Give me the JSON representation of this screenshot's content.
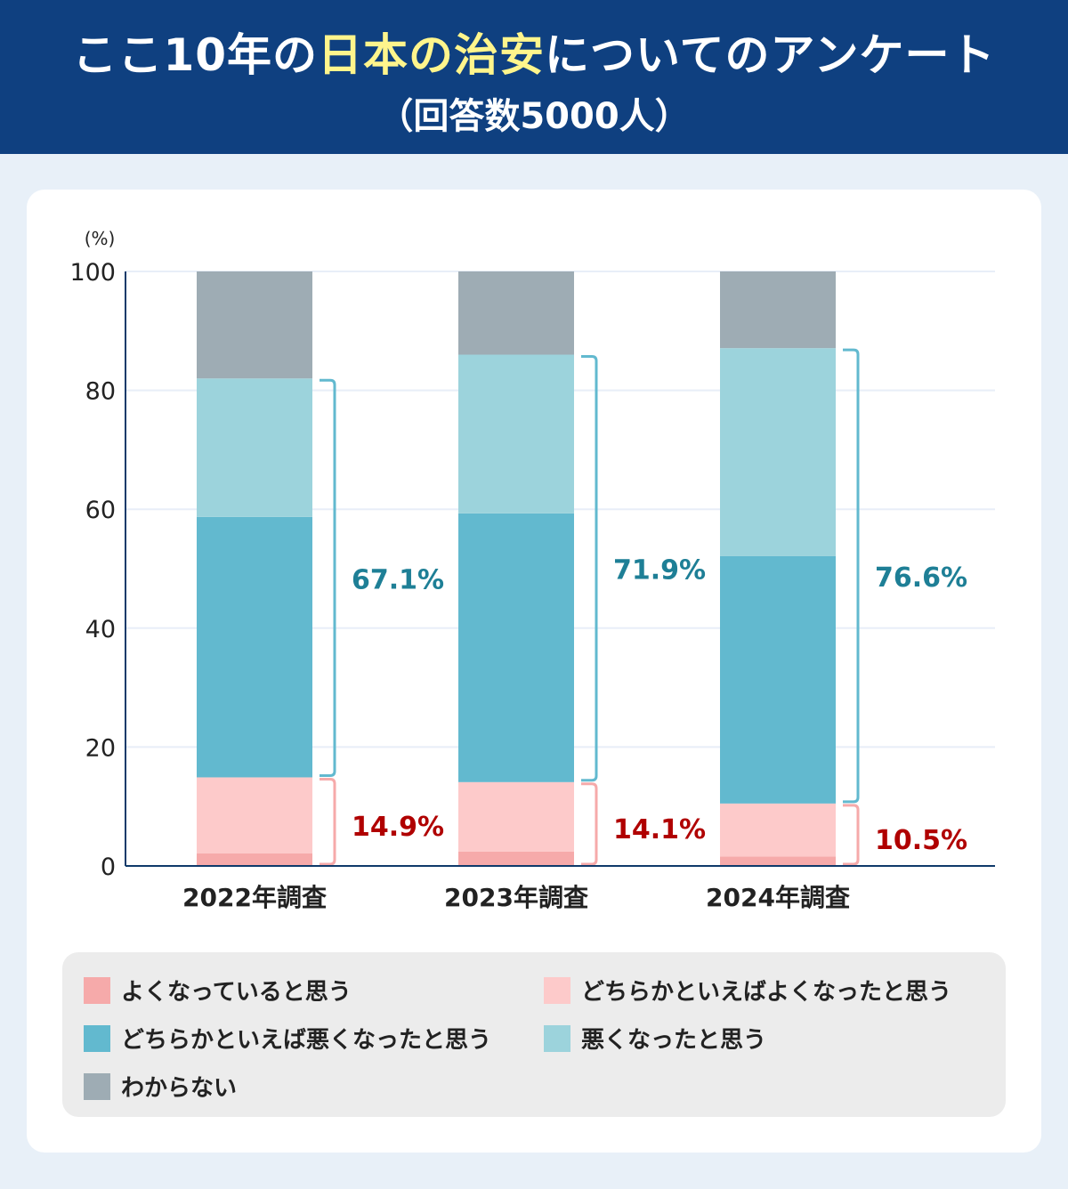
{
  "header": {
    "title_pre": "ここ10年の",
    "title_highlight": "日本の治安",
    "title_post": "についてのアンケート",
    "subtitle": "（回答数5000人）"
  },
  "chart_data": {
    "type": "bar",
    "stacked": true,
    "ylabel": "(%)",
    "ylim": [
      0,
      100
    ],
    "yticks": [
      0,
      20,
      40,
      60,
      80,
      100
    ],
    "grid": true,
    "categories": [
      "2022年調査",
      "2023年調査",
      "2024年調査"
    ],
    "series": [
      {
        "name": "よくなっていると思う",
        "color": "#f6aaaa",
        "values": [
          2.1,
          2.4,
          1.6
        ]
      },
      {
        "name": "どちらかといえばよくなったと思う",
        "color": "#fdcaca",
        "values": [
          12.8,
          11.7,
          8.9
        ]
      },
      {
        "name": "どちらかといえば悪くなったと思う",
        "color": "#62b9cf",
        "values": [
          43.8,
          45.2,
          41.6
        ]
      },
      {
        "name": "悪くなったと思う",
        "color": "#9cd3dc",
        "values": [
          23.3,
          26.7,
          35.0
        ]
      },
      {
        "name": "わからない",
        "color": "#9eacb4",
        "values": [
          18.0,
          14.0,
          12.9
        ]
      }
    ],
    "annotations": {
      "worse_totals": [
        "67.1%",
        "71.9%",
        "76.6%"
      ],
      "better_totals": [
        "14.9%",
        "14.1%",
        "10.5%"
      ],
      "worse_color": "#1e7f96",
      "better_color": "#b00000"
    }
  }
}
